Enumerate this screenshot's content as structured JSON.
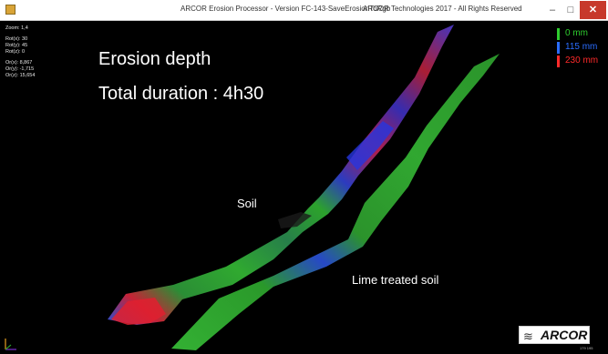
{
  "window": {
    "title": "ARCOR Erosion Processor - Version FC-143-SaveErosionToRgb",
    "copyright": "ARCOR Technologies 2017 - All Rights Reserved",
    "minimize": "–",
    "maximize": "□",
    "close": "✕"
  },
  "info": {
    "zoom": "Zoom:  1,4",
    "rot_x": "Rot(x): 30",
    "rot_y": "Rot(y): 45",
    "rot_z": "Rot(z): 0",
    "or_x": "Or(x): 8,867",
    "or_y": "Or(y): -1,715",
    "or_z": "Or(z): 15,654"
  },
  "overlay": {
    "title": "Erosion depth",
    "duration": "Total duration : 4h30",
    "soil_label": "Soil",
    "lime_label": "Lime treated soil"
  },
  "legend": [
    {
      "label": "0 mm",
      "color": "#2ecc2e"
    },
    {
      "label": "115 mm",
      "color": "#2a6dff"
    },
    {
      "label": "230 mm",
      "color": "#ff2a2a"
    }
  ],
  "logo": {
    "text": "ARCOR"
  },
  "coords": "179 195",
  "icons": {
    "app": "app-icon",
    "axis": "axis-icon",
    "logo_mark": "arcor-logo-mark"
  }
}
